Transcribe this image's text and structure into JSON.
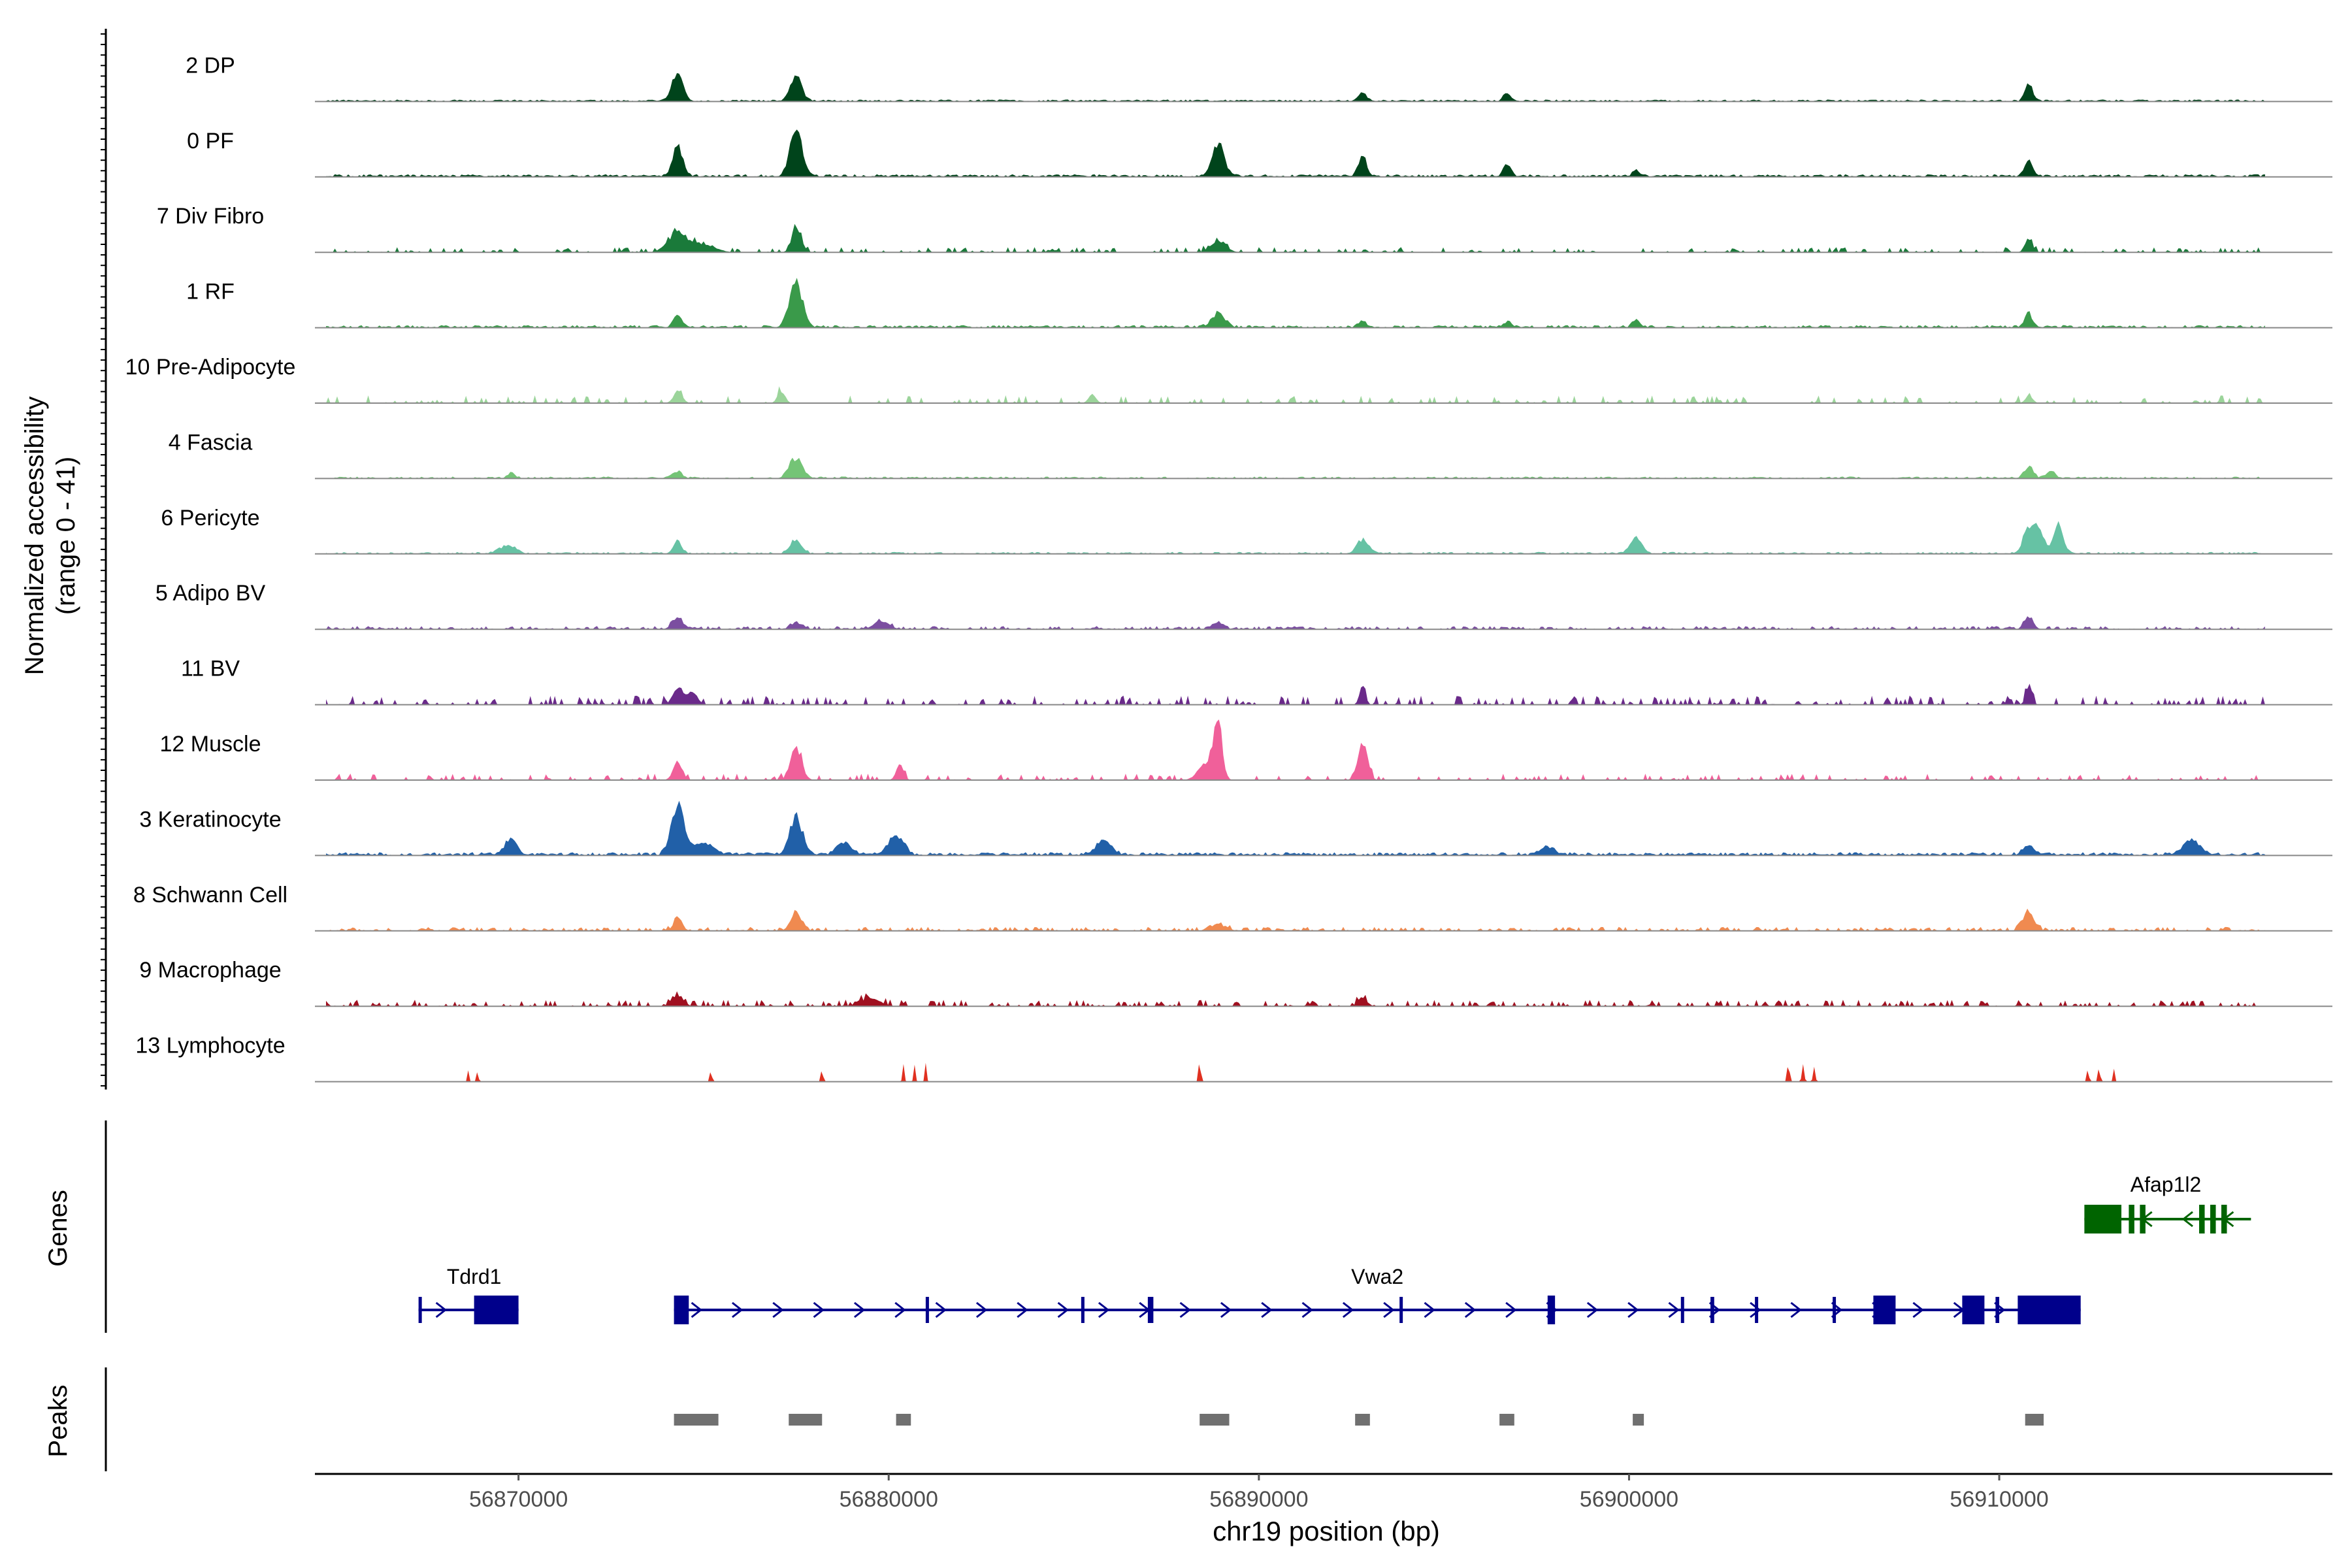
{
  "chart_data": {
    "type": "area",
    "title": "",
    "xlabel": "chr19 position (bp)",
    "ylabel": "Normalized accessibility",
    "ylabel_range": "(range 0 - 41)",
    "xlim": [
      56864500,
      56919000
    ],
    "ylim": [
      0,
      41
    ],
    "x_ticks": [
      56870000,
      56880000,
      56890000,
      56900000,
      56910000
    ],
    "x_tick_labels": [
      "56870000",
      "56880000",
      "56890000",
      "56900000",
      "56910000"
    ],
    "tracks_panel_label": "Genes",
    "peaks_panel_label": "Peaks",
    "series": [
      {
        "name": "2 DP",
        "color": "#00441b",
        "noise": 0.03,
        "density": 1.0,
        "peaks": [
          [
            56874300,
            0.5,
            150
          ],
          [
            56877500,
            0.45,
            150
          ],
          [
            56892800,
            0.15,
            100
          ],
          [
            56896700,
            0.15,
            100
          ],
          [
            56910800,
            0.3,
            100
          ]
        ]
      },
      {
        "name": "0 PF",
        "color": "#00441b",
        "noise": 0.04,
        "density": 1.0,
        "peaks": [
          [
            56874300,
            0.55,
            130
          ],
          [
            56877500,
            0.85,
            160
          ],
          [
            56888900,
            0.55,
            160
          ],
          [
            56892800,
            0.4,
            100
          ],
          [
            56896700,
            0.2,
            100
          ],
          [
            56900200,
            0.1,
            100
          ],
          [
            56910800,
            0.3,
            100
          ]
        ]
      },
      {
        "name": "7 Div Fibro",
        "color": "#1a7a3a",
        "noise": 0.08,
        "density": 0.35,
        "peaks": [
          [
            56874300,
            0.35,
            250
          ],
          [
            56875000,
            0.15,
            300
          ],
          [
            56877500,
            0.45,
            120
          ],
          [
            56888900,
            0.2,
            200
          ],
          [
            56910800,
            0.25,
            100
          ]
        ]
      },
      {
        "name": "1 RF",
        "color": "#3a9a4a",
        "noise": 0.04,
        "density": 0.9,
        "peaks": [
          [
            56874300,
            0.2,
            120
          ],
          [
            56877500,
            0.75,
            180
          ],
          [
            56888900,
            0.25,
            180
          ],
          [
            56892800,
            0.1,
            100
          ],
          [
            56896700,
            0.1,
            100
          ],
          [
            56900200,
            0.15,
            100
          ],
          [
            56910800,
            0.25,
            100
          ]
        ]
      },
      {
        "name": "10 Pre-Adipocyte",
        "color": "#9bd49a",
        "noise": 0.12,
        "density": 0.22,
        "peaks": [
          [
            56874300,
            0.2,
            120
          ],
          [
            56877100,
            0.2,
            100
          ],
          [
            56885500,
            0.15,
            100
          ],
          [
            56910800,
            0.12,
            100
          ]
        ]
      },
      {
        "name": "4 Fascia",
        "color": "#74c476",
        "noise": 0.03,
        "density": 0.8,
        "peaks": [
          [
            56869800,
            0.1,
            100
          ],
          [
            56874300,
            0.12,
            120
          ],
          [
            56877500,
            0.35,
            180
          ],
          [
            56910800,
            0.2,
            120
          ],
          [
            56911400,
            0.12,
            120
          ]
        ]
      },
      {
        "name": "6 Pericyte",
        "color": "#66c2a4",
        "noise": 0.03,
        "density": 0.8,
        "peaks": [
          [
            56869700,
            0.15,
            200
          ],
          [
            56874300,
            0.2,
            120
          ],
          [
            56877500,
            0.25,
            150
          ],
          [
            56892800,
            0.25,
            150
          ],
          [
            56900200,
            0.3,
            150
          ],
          [
            56910800,
            0.45,
            150
          ],
          [
            56911100,
            0.4,
            130
          ],
          [
            56911600,
            0.5,
            130
          ]
        ]
      },
      {
        "name": "5 Adipo BV",
        "color": "#7b4ea0",
        "noise": 0.05,
        "density": 0.6,
        "peaks": [
          [
            56874300,
            0.2,
            150
          ],
          [
            56877500,
            0.12,
            150
          ],
          [
            56879800,
            0.15,
            200
          ],
          [
            56888900,
            0.12,
            150
          ],
          [
            56910800,
            0.22,
            120
          ]
        ]
      },
      {
        "name": "11 BV",
        "color": "#6a2a8a",
        "noise": 0.14,
        "density": 0.3,
        "peaks": [
          [
            56874300,
            0.3,
            130
          ],
          [
            56874700,
            0.25,
            130
          ],
          [
            56892800,
            0.3,
            80
          ],
          [
            56910800,
            0.35,
            80
          ]
        ]
      },
      {
        "name": "12 Muscle",
        "color": "#f0609a",
        "noise": 0.1,
        "density": 0.22,
        "peaks": [
          [
            56874300,
            0.35,
            120
          ],
          [
            56877500,
            0.55,
            150
          ],
          [
            56880300,
            0.25,
            100
          ],
          [
            56888600,
            0.3,
            220
          ],
          [
            56888900,
            0.95,
            110
          ],
          [
            56892800,
            0.65,
            130
          ]
        ]
      },
      {
        "name": "3 Keratinocyte",
        "color": "#2160a8",
        "noise": 0.05,
        "density": 1.0,
        "peaks": [
          [
            56869800,
            0.3,
            150
          ],
          [
            56874300,
            0.9,
            170
          ],
          [
            56875000,
            0.2,
            250
          ],
          [
            56877500,
            0.65,
            170
          ],
          [
            56878800,
            0.2,
            200
          ],
          [
            56880200,
            0.35,
            200
          ],
          [
            56885800,
            0.25,
            200
          ],
          [
            56897800,
            0.12,
            200
          ],
          [
            56910800,
            0.15,
            150
          ],
          [
            56915200,
            0.25,
            200
          ]
        ]
      },
      {
        "name": "8 Schwann Cell",
        "color": "#f08a50",
        "noise": 0.06,
        "density": 0.6,
        "peaks": [
          [
            56874300,
            0.2,
            120
          ],
          [
            56877500,
            0.3,
            150
          ],
          [
            56888900,
            0.12,
            200
          ],
          [
            56910800,
            0.35,
            150
          ]
        ]
      },
      {
        "name": "9 Macrophage",
        "color": "#a01020",
        "noise": 0.1,
        "density": 0.38,
        "peaks": [
          [
            56874300,
            0.2,
            150
          ],
          [
            56879500,
            0.15,
            250
          ],
          [
            56892800,
            0.15,
            120
          ]
        ]
      },
      {
        "name": "13 Lymphocyte",
        "color": "#e03020",
        "noise": 0.0,
        "density": 0.0,
        "peaks": [
          [
            56868650,
            0.25,
            20
          ],
          [
            56868900,
            0.25,
            20
          ],
          [
            56875200,
            0.25,
            25
          ],
          [
            56878200,
            0.25,
            25
          ],
          [
            56880400,
            0.3,
            25
          ],
          [
            56880700,
            0.3,
            25
          ],
          [
            56881000,
            0.3,
            25
          ],
          [
            56888400,
            0.35,
            30
          ],
          [
            56904300,
            0.35,
            30
          ],
          [
            56904700,
            0.3,
            30
          ],
          [
            56905000,
            0.25,
            30
          ],
          [
            56912400,
            0.25,
            25
          ],
          [
            56912700,
            0.3,
            25
          ],
          [
            56913100,
            0.25,
            25
          ]
        ]
      }
    ],
    "genes": [
      {
        "name": "Tdrd1",
        "strand": "+",
        "color": "#00008b",
        "row": 2,
        "start": 56867300,
        "end": 56870000,
        "exons": [
          [
            56867300,
            56867350,
            "thin"
          ],
          [
            56868800,
            56870000,
            "thick"
          ]
        ]
      },
      {
        "name": "Vwa2",
        "strand": "+",
        "color": "#00008b",
        "row": 2,
        "start": 56874200,
        "end": 56912200,
        "exons": [
          [
            56874200,
            56874600,
            "thick"
          ],
          [
            56881000,
            56881080,
            "thin"
          ],
          [
            56885200,
            56885280,
            "thin"
          ],
          [
            56887000,
            56887150,
            "thin"
          ],
          [
            56893800,
            56893880,
            "thin"
          ],
          [
            56897800,
            56898000,
            "thick"
          ],
          [
            56901400,
            56901480,
            "thin"
          ],
          [
            56902200,
            56902300,
            "thin"
          ],
          [
            56903400,
            56903450,
            "thin"
          ],
          [
            56905500,
            56905580,
            "thin"
          ],
          [
            56906600,
            56907200,
            "thick"
          ],
          [
            56909000,
            56909600,
            "thick"
          ],
          [
            56909900,
            56910000,
            "thin"
          ],
          [
            56910500,
            56912200,
            "thick"
          ]
        ]
      },
      {
        "name": "Afap1l2",
        "strand": "-",
        "color": "#006400",
        "row": 1,
        "start": 56912300,
        "end": 56916800,
        "exons": [
          [
            56912300,
            56913300,
            "thick"
          ],
          [
            56913500,
            56913650,
            "thick"
          ],
          [
            56913800,
            56913950,
            "thick"
          ],
          [
            56915400,
            56915550,
            "thick"
          ],
          [
            56915700,
            56915850,
            "thick"
          ],
          [
            56916000,
            56916150,
            "thick"
          ]
        ]
      }
    ],
    "peak_regions": [
      [
        56874200,
        56875400
      ],
      [
        56877300,
        56878200
      ],
      [
        56880200,
        56880600
      ],
      [
        56888400,
        56889200
      ],
      [
        56892600,
        56893000
      ],
      [
        56896500,
        56896900
      ],
      [
        56900100,
        56900400
      ],
      [
        56910700,
        56911200
      ]
    ]
  }
}
